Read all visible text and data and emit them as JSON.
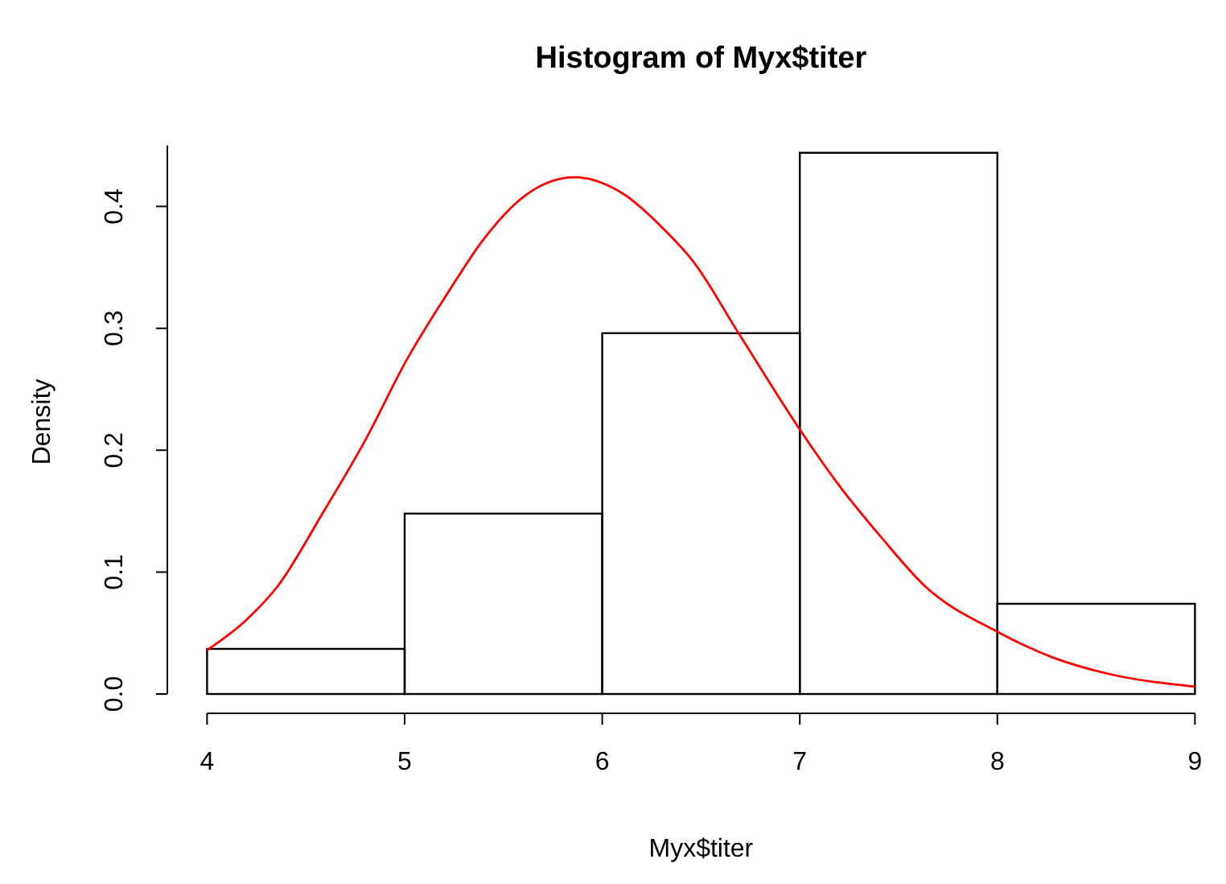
{
  "chart_data": {
    "type": "histogram",
    "title": "Histogram of Myx$titer",
    "xlabel": "Myx$titer",
    "ylabel": "Density",
    "bins": [
      4,
      5,
      6,
      7,
      8,
      9
    ],
    "values": [
      0.037,
      0.148,
      0.296,
      0.444,
      0.074
    ],
    "xlim": [
      4,
      9
    ],
    "xticks": [
      4,
      5,
      6,
      7,
      8,
      9
    ],
    "ylim": [
      0,
      0.45
    ],
    "yticks": [
      {
        "value": 0,
        "label": "0.0"
      },
      0.1,
      0.2,
      0.3,
      0.4
    ],
    "grid": false,
    "series": [
      {
        "type": "line",
        "color": "#ff0000",
        "x": [
          4.0,
          4.2,
          4.36,
          4.58,
          4.8,
          5.01,
          5.23,
          5.39,
          5.61,
          5.86,
          6.1,
          6.32,
          6.46,
          6.69,
          7.0,
          7.19,
          7.41,
          7.63,
          8.0,
          8.28,
          8.55,
          9.0
        ],
        "values": [
          0.036,
          0.061,
          0.089,
          0.147,
          0.208,
          0.274,
          0.332,
          0.371,
          0.409,
          0.424,
          0.411,
          0.38,
          0.355,
          0.296,
          0.217,
          0.173,
          0.129,
          0.089,
          0.051,
          0.03,
          0.017,
          0.006
        ]
      }
    ]
  }
}
